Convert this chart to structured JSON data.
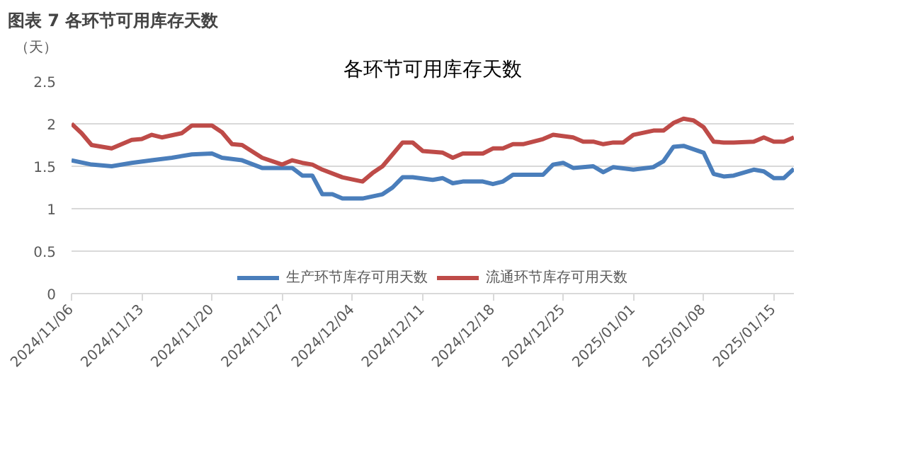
{
  "chart_data": {
    "type": "line",
    "title": "各环节可用库存天数",
    "annotations": [
      "图表 7 各环节可用库存天数"
    ],
    "ylabel": "（天）",
    "ylim": [
      0,
      2.5
    ],
    "yticks": [
      0,
      0.5,
      1,
      1.5,
      2,
      2.5
    ],
    "xlim": [
      "2024-11-06",
      "2025-01-17"
    ],
    "xticks": [
      {
        "value": "2024-11-06",
        "label": "2024/11/06"
      },
      {
        "value": "2024-11-13",
        "label": "2024/11/13"
      },
      {
        "value": "2024-11-20",
        "label": "2024/11/20"
      },
      {
        "value": "2024-11-27",
        "label": "2024/11/27"
      },
      {
        "value": "2024-12-04",
        "label": "2024/12/04"
      },
      {
        "value": "2024-12-11",
        "label": "2024/12/11"
      },
      {
        "value": "2024-12-18",
        "label": "2024/12/18"
      },
      {
        "value": "2024-12-25",
        "label": "2024/12/25"
      },
      {
        "value": "2025-01-01",
        "label": "2025/01/01"
      },
      {
        "value": "2025-01-08",
        "label": "2025/01/08"
      },
      {
        "value": "2025-01-15",
        "label": "2025/01/15"
      }
    ],
    "grid": "y",
    "legend": "bottom",
    "line_style": "solid",
    "series": [
      {
        "name": "生产环节库存可用天数",
        "color": "#4a7ebb",
        "x": [
          "2024-11-06",
          "2024-11-08",
          "2024-11-10",
          "2024-11-12",
          "2024-11-14",
          "2024-11-16",
          "2024-11-18",
          "2024-11-20",
          "2024-11-21",
          "2024-11-23",
          "2024-11-25",
          "2024-11-28",
          "2024-11-29",
          "2024-11-30",
          "2024-12-01",
          "2024-12-02",
          "2024-12-03",
          "2024-12-05",
          "2024-12-07",
          "2024-12-08",
          "2024-12-09",
          "2024-12-10",
          "2024-12-12",
          "2024-12-13",
          "2024-12-14",
          "2024-12-15",
          "2024-12-17",
          "2024-12-18",
          "2024-12-19",
          "2024-12-20",
          "2024-12-23",
          "2024-12-24",
          "2024-12-25",
          "2024-12-26",
          "2024-12-28",
          "2024-12-29",
          "2024-12-30",
          "2025-01-01",
          "2025-01-03",
          "2025-01-04",
          "2025-01-05",
          "2025-01-06",
          "2025-01-08",
          "2025-01-09",
          "2025-01-10",
          "2025-01-11",
          "2025-01-13",
          "2025-01-14",
          "2025-01-15",
          "2025-01-16",
          "2025-01-17"
        ],
        "values": [
          1.57,
          1.52,
          1.5,
          1.54,
          1.57,
          1.6,
          1.64,
          1.65,
          1.6,
          1.57,
          1.48,
          1.48,
          1.39,
          1.39,
          1.17,
          1.17,
          1.12,
          1.12,
          1.17,
          1.25,
          1.37,
          1.37,
          1.34,
          1.36,
          1.3,
          1.32,
          1.32,
          1.29,
          1.32,
          1.4,
          1.4,
          1.52,
          1.54,
          1.48,
          1.5,
          1.43,
          1.49,
          1.46,
          1.49,
          1.56,
          1.73,
          1.74,
          1.66,
          1.41,
          1.38,
          1.39,
          1.46,
          1.44,
          1.36,
          1.36,
          1.47
        ]
      },
      {
        "name": "流通环节库存可用天数",
        "color": "#be4b48",
        "x": [
          "2024-11-06",
          "2024-11-07",
          "2024-11-08",
          "2024-11-10",
          "2024-11-12",
          "2024-11-13",
          "2024-11-14",
          "2024-11-15",
          "2024-11-17",
          "2024-11-18",
          "2024-11-20",
          "2024-11-21",
          "2024-11-22",
          "2024-11-23",
          "2024-11-25",
          "2024-11-27",
          "2024-11-28",
          "2024-11-29",
          "2024-11-30",
          "2024-12-01",
          "2024-12-03",
          "2024-12-05",
          "2024-12-06",
          "2024-12-07",
          "2024-12-08",
          "2024-12-09",
          "2024-12-10",
          "2024-12-11",
          "2024-12-13",
          "2024-12-14",
          "2024-12-15",
          "2024-12-17",
          "2024-12-18",
          "2024-12-19",
          "2024-12-20",
          "2024-12-21",
          "2024-12-23",
          "2024-12-24",
          "2024-12-26",
          "2024-12-27",
          "2024-12-28",
          "2024-12-29",
          "2024-12-30",
          "2024-12-31",
          "2025-01-01",
          "2025-01-03",
          "2025-01-04",
          "2025-01-05",
          "2025-01-06",
          "2025-01-07",
          "2025-01-08",
          "2025-01-09",
          "2025-01-10",
          "2025-01-11",
          "2025-01-13",
          "2025-01-14",
          "2025-01-15",
          "2025-01-16",
          "2025-01-17"
        ],
        "values": [
          2.0,
          1.89,
          1.75,
          1.71,
          1.81,
          1.82,
          1.87,
          1.84,
          1.89,
          1.98,
          1.98,
          1.9,
          1.76,
          1.75,
          1.6,
          1.52,
          1.57,
          1.54,
          1.52,
          1.46,
          1.37,
          1.32,
          1.42,
          1.5,
          1.64,
          1.78,
          1.78,
          1.68,
          1.66,
          1.6,
          1.65,
          1.65,
          1.71,
          1.71,
          1.76,
          1.76,
          1.82,
          1.87,
          1.84,
          1.79,
          1.79,
          1.76,
          1.78,
          1.78,
          1.87,
          1.92,
          1.92,
          2.01,
          2.06,
          2.04,
          1.96,
          1.79,
          1.78,
          1.78,
          1.79,
          1.84,
          1.79,
          1.79,
          1.84
        ]
      }
    ]
  }
}
